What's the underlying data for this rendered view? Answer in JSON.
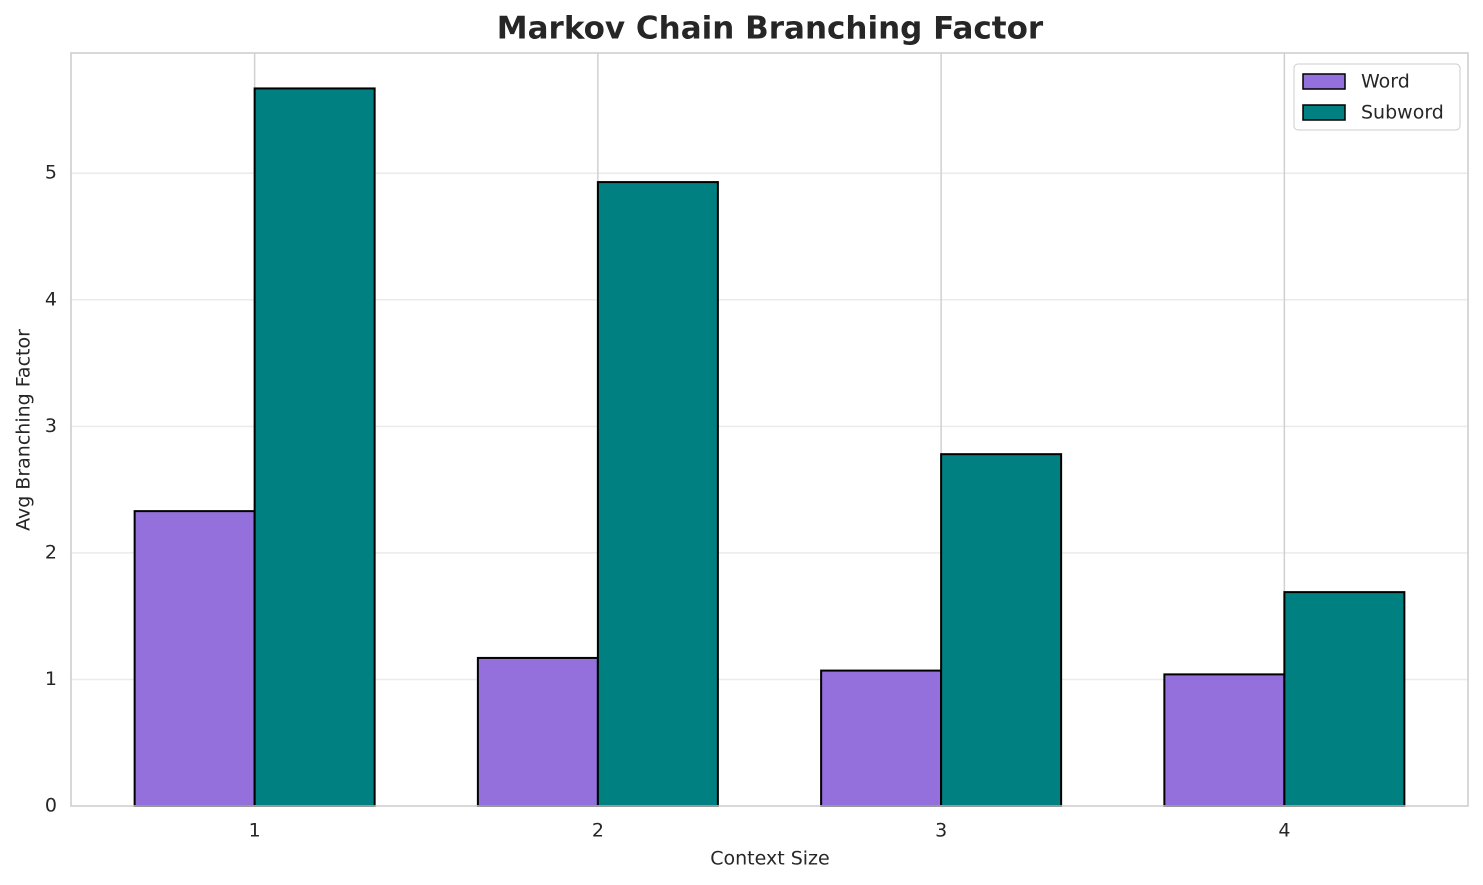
{
  "chart_data": {
    "type": "bar",
    "title": "Markov Chain Branching Factor",
    "x_label": "Context Size",
    "y_label": "Avg Branching Factor",
    "categories": [
      "1",
      "2",
      "3",
      "4"
    ],
    "series": [
      {
        "name": "Word",
        "color": "#9370db",
        "values": [
          2.33,
          1.17,
          1.07,
          1.04
        ]
      },
      {
        "name": "Subword",
        "color": "#008080",
        "values": [
          5.67,
          4.93,
          2.78,
          1.69
        ]
      }
    ],
    "ylim": [
      0,
      5.95
    ],
    "yticks": [
      0,
      1,
      2,
      3,
      4,
      5
    ],
    "grid": true,
    "legend": "upper right"
  }
}
